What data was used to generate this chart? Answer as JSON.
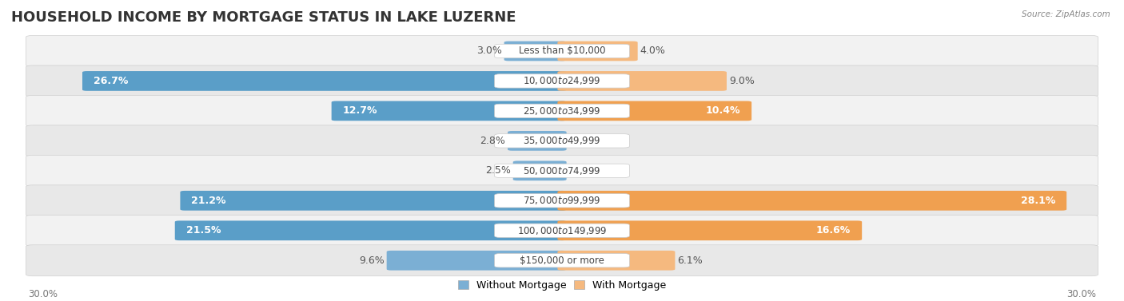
{
  "title": "HOUSEHOLD INCOME BY MORTGAGE STATUS IN LAKE LUZERNE",
  "source": "Source: ZipAtlas.com",
  "categories": [
    "Less than $10,000",
    "$10,000 to $24,999",
    "$25,000 to $34,999",
    "$35,000 to $49,999",
    "$50,000 to $74,999",
    "$75,000 to $99,999",
    "$100,000 to $149,999",
    "$150,000 or more"
  ],
  "without_mortgage": [
    3.0,
    26.7,
    12.7,
    2.8,
    2.5,
    21.2,
    21.5,
    9.6
  ],
  "with_mortgage": [
    4.0,
    9.0,
    10.4,
    0.0,
    0.0,
    28.1,
    16.6,
    6.1
  ],
  "color_without": "#7bafd4",
  "color_with": "#f5b97f",
  "color_without_large": "#5a9ec8",
  "color_with_large": "#f0a050",
  "xlim": 30.0,
  "legend_labels": [
    "Without Mortgage",
    "With Mortgage"
  ],
  "axis_label_left": "30.0%",
  "axis_label_right": "30.0%",
  "title_fontsize": 13,
  "label_fontsize": 9,
  "category_fontsize": 8.5,
  "row_bg_colors": [
    "#f2f2f2",
    "#e8e8e8"
  ]
}
